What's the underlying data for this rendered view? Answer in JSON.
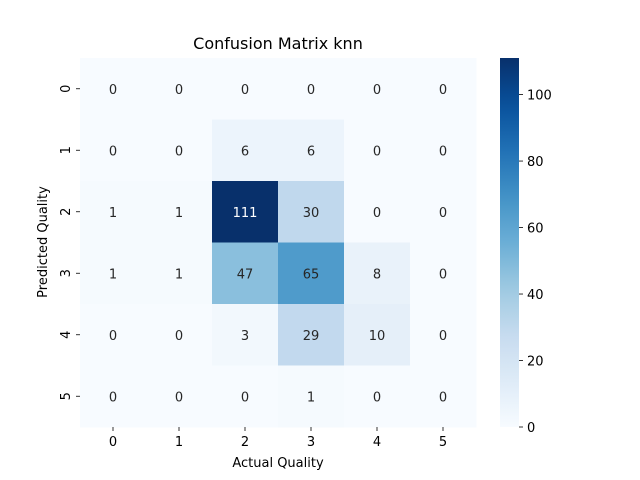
{
  "chart_data": {
    "type": "heatmap",
    "title": "Confusion Matrix knn",
    "xlabel": "Actual Quality",
    "ylabel": "Predicted Quality",
    "x_categories": [
      "0",
      "1",
      "2",
      "3",
      "4",
      "5"
    ],
    "y_categories": [
      "0",
      "1",
      "2",
      "3",
      "4",
      "5"
    ],
    "matrix": [
      [
        0,
        0,
        0,
        0,
        0,
        0
      ],
      [
        0,
        0,
        6,
        6,
        0,
        0
      ],
      [
        1,
        1,
        111,
        30,
        0,
        0
      ],
      [
        1,
        1,
        47,
        65,
        8,
        0
      ],
      [
        0,
        0,
        3,
        29,
        10,
        0
      ],
      [
        0,
        0,
        0,
        1,
        0,
        0
      ]
    ],
    "colormap": "Blues",
    "colorbar": {
      "vmin": 0,
      "vmax": 111,
      "ticks": [
        0,
        20,
        40,
        60,
        80,
        100
      ]
    },
    "colors": {
      "low": "#f7fbff",
      "high": "#08306b"
    }
  }
}
